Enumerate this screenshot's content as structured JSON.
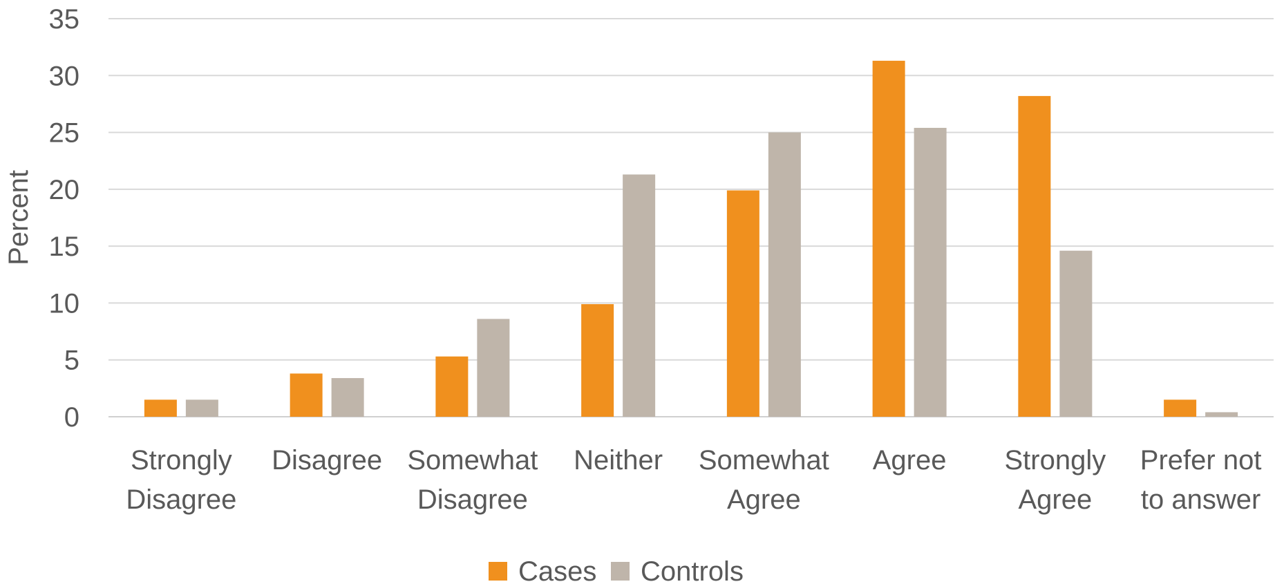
{
  "chart_data": {
    "type": "bar",
    "title": "",
    "xlabel": "",
    "ylabel": "Percent",
    "ylim": [
      0,
      35
    ],
    "yticks": [
      0,
      5,
      10,
      15,
      20,
      25,
      30,
      35
    ],
    "grid": true,
    "legend_position": "bottom",
    "categories": [
      [
        "Strongly",
        "Disagree"
      ],
      [
        "Disagree"
      ],
      [
        "Somewhat",
        "Disagree"
      ],
      [
        "Neither"
      ],
      [
        "Somewhat",
        "Agree"
      ],
      [
        "Agree"
      ],
      [
        "Strongly",
        "Agree"
      ],
      [
        "Prefer not",
        "to answer"
      ]
    ],
    "series": [
      {
        "name": "Cases",
        "color": "#f0901e",
        "values": [
          1.5,
          3.8,
          5.3,
          9.9,
          19.9,
          31.3,
          28.2,
          1.5
        ]
      },
      {
        "name": "Controls",
        "color": "#bfb5aa",
        "values": [
          1.5,
          3.4,
          8.6,
          21.3,
          25.0,
          25.4,
          14.6,
          0.4
        ]
      }
    ]
  }
}
